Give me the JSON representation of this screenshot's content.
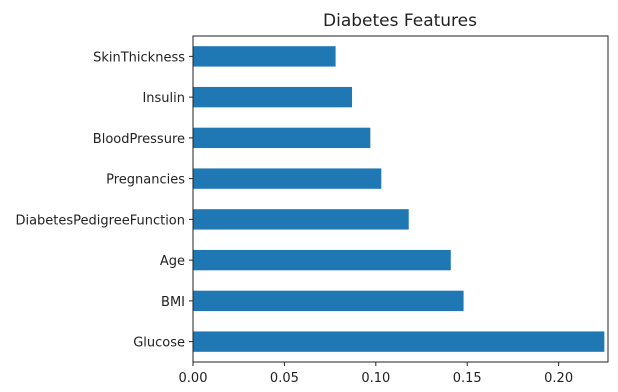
{
  "chart_data": {
    "type": "bar",
    "orientation": "horizontal",
    "title": "Diabetes Features",
    "xlabel": "",
    "ylabel": "",
    "categories": [
      "SkinThickness",
      "Insulin",
      "BloodPressure",
      "Pregnancies",
      "DiabetesPedigreeFunction",
      "Age",
      "BMI",
      "Glucose"
    ],
    "values": [
      0.078,
      0.087,
      0.097,
      0.103,
      0.118,
      0.141,
      0.148,
      0.225
    ],
    "xlim": [
      0,
      0.227
    ],
    "xticks": [
      "0.00",
      "0.05",
      "0.10",
      "0.15",
      "0.20"
    ],
    "xtick_values": [
      0,
      0.05,
      0.1,
      0.15,
      0.2
    ],
    "grid": false,
    "bar_color": "#1f77b4"
  }
}
